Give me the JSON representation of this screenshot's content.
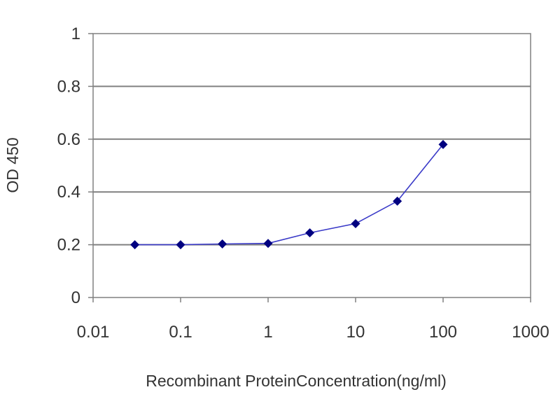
{
  "chart_data": {
    "type": "line",
    "title": "",
    "xlabel": "Recombinant ProteinConcentration(ng/ml)",
    "ylabel": "OD 450",
    "x_scale": "log",
    "xlim": [
      0.01,
      1000
    ],
    "ylim": [
      0,
      1
    ],
    "x_ticks": [
      "0.01",
      "0.1",
      "1",
      "10",
      "100",
      "1000"
    ],
    "y_ticks": [
      "0",
      "0.2",
      "0.4",
      "0.6",
      "0.8",
      "1"
    ],
    "y_gridlines": true,
    "legend": "none",
    "series": [
      {
        "color": "#000080",
        "x": [
          0.03,
          0.1,
          0.3,
          1,
          3,
          10,
          30,
          100
        ],
        "y": [
          0.2,
          0.2,
          0.203,
          0.205,
          0.245,
          0.28,
          0.365,
          0.58
        ]
      }
    ]
  }
}
